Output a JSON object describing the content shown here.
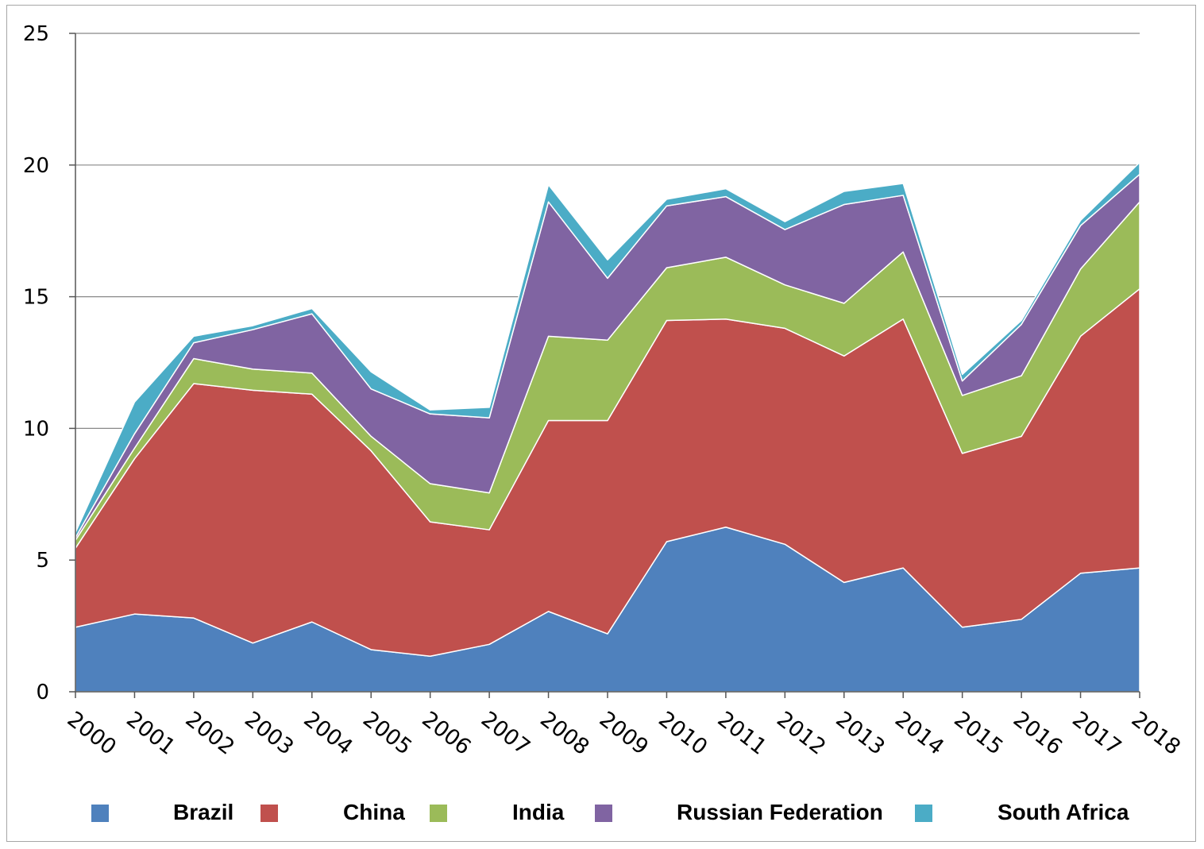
{
  "chart_data": {
    "type": "area",
    "stacked": true,
    "title": "",
    "xlabel": "",
    "ylabel": "",
    "ylim": [
      0,
      25
    ],
    "yticks": [
      0,
      5,
      10,
      15,
      20,
      25
    ],
    "grid": true,
    "legend_position": "bottom",
    "x": [
      "2000",
      "2001",
      "2002",
      "2003",
      "2004",
      "2005",
      "2006",
      "2007",
      "2008",
      "2009",
      "2010",
      "2011",
      "2012",
      "2013",
      "2014",
      "2015",
      "2016",
      "2017",
      "2018"
    ],
    "series": [
      {
        "name": "Brazil",
        "color": "#4f81bd",
        "values": [
          2.45,
          2.95,
          2.8,
          1.85,
          2.65,
          1.6,
          1.35,
          1.8,
          3.05,
          2.2,
          5.7,
          6.25,
          5.6,
          4.15,
          4.7,
          2.45,
          2.75,
          4.5,
          4.7
        ]
      },
      {
        "name": "China",
        "color": "#c0504d",
        "values": [
          3.0,
          5.9,
          8.9,
          9.6,
          8.65,
          7.55,
          5.1,
          4.35,
          7.25,
          8.1,
          8.4,
          7.9,
          8.2,
          8.6,
          9.45,
          6.6,
          6.95,
          9.0,
          10.6
        ]
      },
      {
        "name": "India",
        "color": "#9bbb59",
        "values": [
          0.3,
          0.4,
          0.95,
          0.8,
          0.8,
          0.55,
          1.45,
          1.4,
          3.2,
          3.05,
          2.0,
          2.35,
          1.65,
          2.0,
          2.55,
          2.2,
          2.3,
          2.55,
          3.3
        ]
      },
      {
        "name": "Russian Federation",
        "color": "#8064a2",
        "values": [
          0.1,
          0.55,
          0.6,
          1.5,
          2.25,
          1.8,
          2.65,
          2.85,
          5.1,
          2.35,
          2.35,
          2.3,
          2.1,
          3.75,
          2.15,
          0.55,
          1.95,
          1.65,
          1.05
        ]
      },
      {
        "name": "South Africa",
        "color": "#4bacc6",
        "values": [
          0.2,
          1.2,
          0.25,
          0.15,
          0.2,
          0.65,
          0.15,
          0.4,
          0.65,
          0.7,
          0.25,
          0.3,
          0.3,
          0.5,
          0.45,
          0.25,
          0.15,
          0.2,
          0.45
        ]
      }
    ]
  }
}
